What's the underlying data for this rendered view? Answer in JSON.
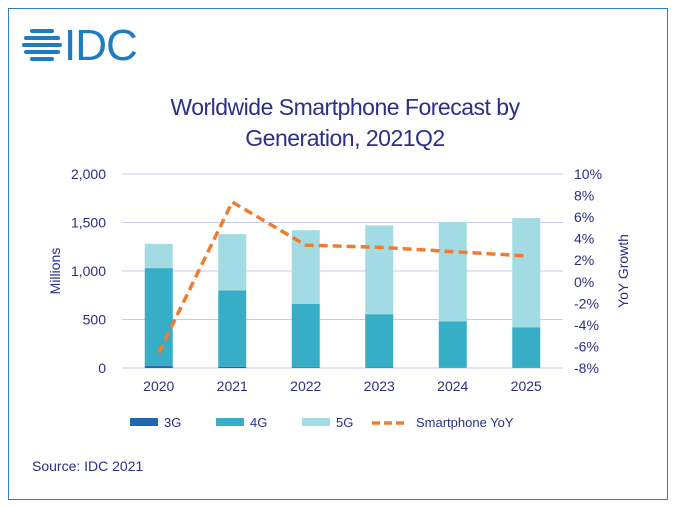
{
  "logo": {
    "text": "IDC"
  },
  "chart_data": {
    "type": "bar",
    "title": "Worldwide Smartphone Forecast by Generation, 2021Q2",
    "title_lines": [
      "Worldwide Smartphone Forecast by",
      "Generation, 2021Q2"
    ],
    "categories": [
      "2020",
      "2021",
      "2022",
      "2023",
      "2024",
      "2025"
    ],
    "ylabel": "Millions",
    "y2label": "YoY Growth",
    "ylim": [
      0,
      2000
    ],
    "y2lim": [
      -8,
      10
    ],
    "yticks": [
      "0",
      "500",
      "1,000",
      "1,500",
      "2,000"
    ],
    "y2ticks": [
      "-8%",
      "-6%",
      "-4%",
      "-2%",
      "0%",
      "2%",
      "4%",
      "6%",
      "8%",
      "10%"
    ],
    "stacked": true,
    "grid": true,
    "legend_position": "bottom",
    "series": [
      {
        "name": "3G",
        "type": "bar",
        "color": "#2266b0",
        "values": [
          20,
          12,
          8,
          4,
          2,
          1
        ]
      },
      {
        "name": "4G",
        "type": "bar",
        "color": "#38aec6",
        "values": [
          1010,
          788,
          652,
          551,
          478,
          419
        ]
      },
      {
        "name": "5G",
        "type": "bar",
        "color": "#a3dbe5",
        "values": [
          250,
          580,
          760,
          915,
          1025,
          1125
        ]
      },
      {
        "name": "Smartphone YoY",
        "type": "line",
        "axis": "right",
        "color": "#ee7d31",
        "values": [
          -6.6,
          7.4,
          3.4,
          3.2,
          2.8,
          2.4
        ]
      }
    ]
  },
  "source": "Source: IDC 2021"
}
